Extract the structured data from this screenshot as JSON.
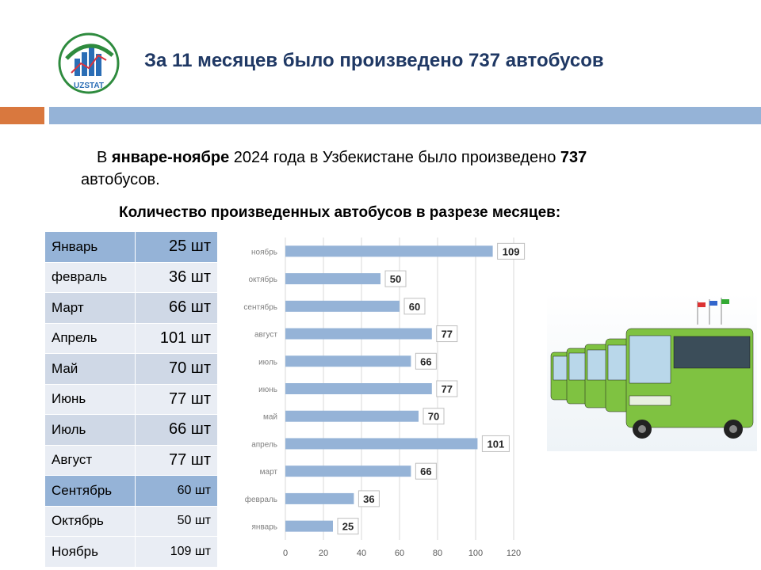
{
  "header": {
    "logo_text": "UZSTAT",
    "title": "За 11 месяцев было произведено 737 автобусов"
  },
  "intro": {
    "prefix": "В ",
    "period_bold": "январе-ноябре",
    "middle": " 2024 года в Узбекистане было произведено ",
    "total_bold": "737",
    "suffix": " автобусов."
  },
  "table_title": "Количество произведенных автобусов в разрезе месяцев:",
  "table": {
    "rows": [
      {
        "month": "Январь",
        "value": "25 шт"
      },
      {
        "month": "февраль",
        "value": "36 шт"
      },
      {
        "month": "Март",
        "value": "66 шт"
      },
      {
        "month": "Апрель",
        "value": "101 шт"
      },
      {
        "month": "Май",
        "value": "70 шт"
      },
      {
        "month": "Июнь",
        "value": "77 шт"
      },
      {
        "month": "Июль",
        "value": "66 шт"
      },
      {
        "month": "Август",
        "value": "77 шт"
      },
      {
        "month": "Сентябрь",
        "value": "60 шт"
      },
      {
        "month": "Октябрь",
        "value": "50 шт"
      },
      {
        "month": "Ноябрь",
        "value": "109 шт"
      }
    ]
  },
  "chart_data": {
    "type": "bar",
    "orientation": "horizontal",
    "categories": [
      "ноябрь",
      "октябрь",
      "сентябрь",
      "август",
      "июль",
      "июнь",
      "май",
      "апрель",
      "март",
      "февраль",
      "январь"
    ],
    "values": [
      109,
      50,
      60,
      77,
      66,
      77,
      70,
      101,
      66,
      36,
      25
    ],
    "xlim": [
      0,
      120
    ],
    "xticks": [
      0,
      20,
      40,
      60,
      80,
      100,
      120
    ],
    "grid": true,
    "bar_color": "#95b3d7"
  },
  "colors": {
    "title": "#1f3864",
    "accent": "#d9783e",
    "band": "#95b3d7"
  }
}
